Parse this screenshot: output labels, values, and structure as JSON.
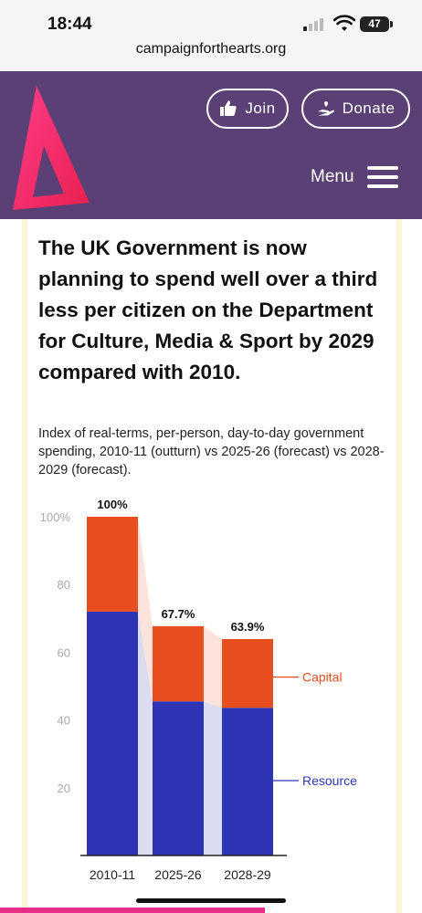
{
  "status_bar": {
    "time": "18:44",
    "battery": "47"
  },
  "browser": {
    "url": "campaignforthearts.org"
  },
  "header": {
    "join_label": "Join",
    "donate_label": "Donate",
    "menu_label": "Menu"
  },
  "article": {
    "headline": "The UK Government is now planning to spend well over a third less per citizen on the Department for Culture, Media & Sport by 2029 compared with 2010.",
    "subtitle": "Index of real-terms, per-person, day-to-day government spending, 2010-11 (outturn) vs 2025-26 (forecast) vs 2028-2029 (forecast)."
  },
  "chart_data": {
    "type": "bar",
    "stacked": true,
    "categories": [
      "2010-11",
      "2025-26",
      "2028-29"
    ],
    "series": [
      {
        "name": "Resource",
        "values": [
          72,
          45.5,
          43.6
        ],
        "color": "#2d35b4"
      },
      {
        "name": "Capital",
        "values": [
          28,
          22.2,
          20.3
        ],
        "color": "#e94e1f"
      }
    ],
    "totals_labels": [
      "100%",
      "67.7%",
      "63.9%"
    ],
    "y_ticks": [
      "20",
      "40",
      "60",
      "80",
      "100%"
    ],
    "y_tick_values": [
      20,
      40,
      60,
      80,
      100
    ],
    "ylim": [
      0,
      100
    ],
    "legend_placement": "right, inline labels",
    "connector_colors": {
      "Resource": "#dcdcf1",
      "Capital": "#fde3dc"
    },
    "grid": false
  }
}
